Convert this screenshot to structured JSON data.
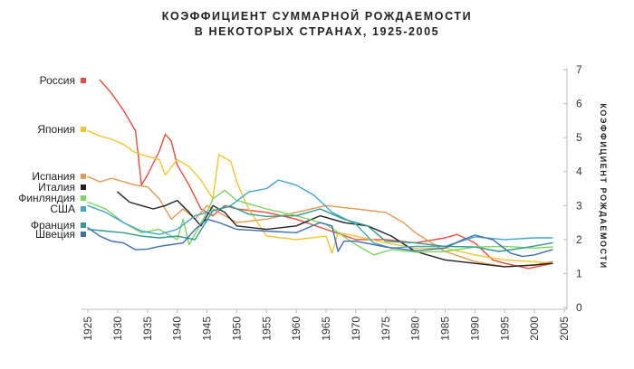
{
  "title_line1": "КОЭФФИЦИЕНТ СУММАРНОЙ РОЖДАЕМОСТИ",
  "title_line2": "В НЕКОТОРЫХ СТРАНАХ, 1925-2005",
  "chart_data": {
    "type": "line",
    "title": "КОЭФФИЦИЕНТ СУММАРНОЙ РОЖДАЕМОСТИ В НЕКОТОРЫХ СТРАНАХ, 1925-2005",
    "xlabel": "",
    "ylabel": "КОЭФФИЦИЕНТ РОЖДАЕМОСТИ",
    "xlim": [
      1925,
      2005
    ],
    "ylim": [
      0,
      7
    ],
    "x_ticks": [
      1925,
      1930,
      1935,
      1940,
      1945,
      1950,
      1955,
      1960,
      1965,
      1970,
      1975,
      1980,
      1985,
      1990,
      1995,
      2000,
      2005
    ],
    "y_ticks": [
      0,
      1,
      2,
      3,
      4,
      5,
      6,
      7
    ],
    "y_axis_side": "right",
    "legend_position": "left",
    "grid": false,
    "series": [
      {
        "name": "Россия",
        "color": "#f04a3c",
        "points": [
          [
            1927,
            6.7
          ],
          [
            1929,
            6.3
          ],
          [
            1931,
            5.8
          ],
          [
            1933,
            5.2
          ],
          [
            1934,
            3.6
          ],
          [
            1935,
            3.9
          ],
          [
            1937,
            4.6
          ],
          [
            1938,
            5.1
          ],
          [
            1939,
            4.9
          ],
          [
            1940,
            4.2
          ],
          [
            1942,
            3.6
          ],
          [
            1944,
            2.9
          ],
          [
            1946,
            2.7
          ],
          [
            1948,
            3.0
          ],
          [
            1950,
            2.9
          ],
          [
            1955,
            2.8
          ],
          [
            1960,
            2.6
          ],
          [
            1965,
            2.3
          ],
          [
            1970,
            2.0
          ],
          [
            1975,
            2.0
          ],
          [
            1980,
            1.9
          ],
          [
            1985,
            2.05
          ],
          [
            1987,
            2.15
          ],
          [
            1990,
            1.9
          ],
          [
            1993,
            1.4
          ],
          [
            1995,
            1.3
          ],
          [
            1999,
            1.15
          ],
          [
            2003,
            1.3
          ]
        ]
      },
      {
        "name": "Япония",
        "color": "#f6c42c",
        "points": [
          [
            1925,
            5.2
          ],
          [
            1927,
            5.05
          ],
          [
            1929,
            4.95
          ],
          [
            1931,
            4.8
          ],
          [
            1933,
            4.55
          ],
          [
            1935,
            4.45
          ],
          [
            1937,
            4.35
          ],
          [
            1938,
            3.9
          ],
          [
            1940,
            4.35
          ],
          [
            1942,
            4.15
          ],
          [
            1944,
            3.75
          ],
          [
            1946,
            3.2
          ],
          [
            1947,
            4.5
          ],
          [
            1949,
            4.3
          ],
          [
            1950,
            3.7
          ],
          [
            1952,
            2.9
          ],
          [
            1955,
            2.1
          ],
          [
            1960,
            2.0
          ],
          [
            1965,
            2.1
          ],
          [
            1966,
            1.6
          ],
          [
            1967,
            2.2
          ],
          [
            1970,
            2.1
          ],
          [
            1975,
            1.9
          ],
          [
            1980,
            1.75
          ],
          [
            1985,
            1.75
          ],
          [
            1990,
            1.55
          ],
          [
            1995,
            1.4
          ],
          [
            2000,
            1.35
          ],
          [
            2003,
            1.3
          ]
        ]
      },
      {
        "name": "Испания",
        "color": "#e39a52",
        "points": [
          [
            1925,
            3.85
          ],
          [
            1927,
            3.7
          ],
          [
            1929,
            3.8
          ],
          [
            1931,
            3.7
          ],
          [
            1933,
            3.6
          ],
          [
            1935,
            3.55
          ],
          [
            1937,
            3.2
          ],
          [
            1939,
            2.6
          ],
          [
            1941,
            2.9
          ],
          [
            1943,
            2.6
          ],
          [
            1945,
            3.0
          ],
          [
            1950,
            2.5
          ],
          [
            1955,
            2.6
          ],
          [
            1960,
            2.8
          ],
          [
            1965,
            3.0
          ],
          [
            1970,
            2.9
          ],
          [
            1975,
            2.8
          ],
          [
            1978,
            2.5
          ],
          [
            1980,
            2.2
          ],
          [
            1985,
            1.65
          ],
          [
            1990,
            1.35
          ],
          [
            1995,
            1.2
          ],
          [
            2000,
            1.25
          ],
          [
            2003,
            1.35
          ]
        ]
      },
      {
        "name": "Италия",
        "color": "#222222",
        "points": [
          [
            1930,
            3.4
          ],
          [
            1932,
            3.1
          ],
          [
            1934,
            3.0
          ],
          [
            1936,
            2.9
          ],
          [
            1938,
            3.0
          ],
          [
            1940,
            3.15
          ],
          [
            1942,
            2.8
          ],
          [
            1944,
            2.4
          ],
          [
            1946,
            3.0
          ],
          [
            1948,
            2.8
          ],
          [
            1950,
            2.4
          ],
          [
            1955,
            2.3
          ],
          [
            1960,
            2.4
          ],
          [
            1964,
            2.7
          ],
          [
            1968,
            2.5
          ],
          [
            1972,
            2.4
          ],
          [
            1976,
            2.1
          ],
          [
            1980,
            1.65
          ],
          [
            1985,
            1.4
          ],
          [
            1990,
            1.3
          ],
          [
            1995,
            1.2
          ],
          [
            2000,
            1.25
          ],
          [
            2003,
            1.3
          ]
        ]
      },
      {
        "name": "Финляндия",
        "color": "#7dd65c",
        "points": [
          [
            1925,
            3.1
          ],
          [
            1928,
            2.9
          ],
          [
            1931,
            2.5
          ],
          [
            1934,
            2.2
          ],
          [
            1937,
            2.3
          ],
          [
            1940,
            2.0
          ],
          [
            1941,
            2.6
          ],
          [
            1942,
            1.85
          ],
          [
            1945,
            2.8
          ],
          [
            1946,
            3.2
          ],
          [
            1948,
            3.45
          ],
          [
            1950,
            3.15
          ],
          [
            1955,
            2.9
          ],
          [
            1960,
            2.7
          ],
          [
            1965,
            2.45
          ],
          [
            1970,
            1.85
          ],
          [
            1973,
            1.55
          ],
          [
            1976,
            1.7
          ],
          [
            1980,
            1.63
          ],
          [
            1985,
            1.65
          ],
          [
            1990,
            1.78
          ],
          [
            1995,
            1.8
          ],
          [
            2000,
            1.75
          ],
          [
            2003,
            1.78
          ]
        ]
      },
      {
        "name": "США",
        "color": "#41a7cc",
        "points": [
          [
            1925,
            3.0
          ],
          [
            1928,
            2.8
          ],
          [
            1931,
            2.5
          ],
          [
            1934,
            2.25
          ],
          [
            1937,
            2.15
          ],
          [
            1940,
            2.3
          ],
          [
            1943,
            2.7
          ],
          [
            1946,
            2.85
          ],
          [
            1949,
            3.0
          ],
          [
            1952,
            3.4
          ],
          [
            1955,
            3.5
          ],
          [
            1957,
            3.75
          ],
          [
            1960,
            3.6
          ],
          [
            1963,
            3.3
          ],
          [
            1966,
            2.8
          ],
          [
            1970,
            2.45
          ],
          [
            1973,
            1.9
          ],
          [
            1976,
            1.75
          ],
          [
            1980,
            1.8
          ],
          [
            1985,
            1.8
          ],
          [
            1990,
            2.08
          ],
          [
            1995,
            2.0
          ],
          [
            2000,
            2.05
          ],
          [
            2003,
            2.05
          ]
        ]
      },
      {
        "name": "Франция",
        "color": "#2d9b8e",
        "points": [
          [
            1925,
            2.3
          ],
          [
            1928,
            2.25
          ],
          [
            1931,
            2.2
          ],
          [
            1934,
            2.1
          ],
          [
            1937,
            2.05
          ],
          [
            1940,
            2.1
          ],
          [
            1943,
            2.0
          ],
          [
            1946,
            2.85
          ],
          [
            1949,
            2.98
          ],
          [
            1952,
            2.75
          ],
          [
            1955,
            2.68
          ],
          [
            1960,
            2.7
          ],
          [
            1964,
            2.9
          ],
          [
            1968,
            2.6
          ],
          [
            1972,
            2.4
          ],
          [
            1975,
            1.95
          ],
          [
            1980,
            1.9
          ],
          [
            1985,
            1.8
          ],
          [
            1990,
            1.78
          ],
          [
            1994,
            1.65
          ],
          [
            1998,
            1.75
          ],
          [
            2003,
            1.9
          ]
        ]
      },
      {
        "name": "Швеция",
        "color": "#3f6fb5",
        "points": [
          [
            1925,
            2.35
          ],
          [
            1927,
            2.1
          ],
          [
            1929,
            1.95
          ],
          [
            1931,
            1.9
          ],
          [
            1933,
            1.7
          ],
          [
            1935,
            1.72
          ],
          [
            1937,
            1.8
          ],
          [
            1939,
            1.85
          ],
          [
            1941,
            1.9
          ],
          [
            1943,
            2.3
          ],
          [
            1945,
            2.6
          ],
          [
            1947,
            2.5
          ],
          [
            1950,
            2.3
          ],
          [
            1955,
            2.25
          ],
          [
            1960,
            2.2
          ],
          [
            1964,
            2.5
          ],
          [
            1966,
            2.4
          ],
          [
            1967,
            1.65
          ],
          [
            1968,
            1.95
          ],
          [
            1970,
            1.95
          ],
          [
            1975,
            1.78
          ],
          [
            1980,
            1.67
          ],
          [
            1985,
            1.75
          ],
          [
            1988,
            2.0
          ],
          [
            1990,
            2.13
          ],
          [
            1993,
            2.0
          ],
          [
            1996,
            1.6
          ],
          [
            1998,
            1.5
          ],
          [
            2000,
            1.55
          ],
          [
            2003,
            1.7
          ]
        ]
      }
    ]
  }
}
